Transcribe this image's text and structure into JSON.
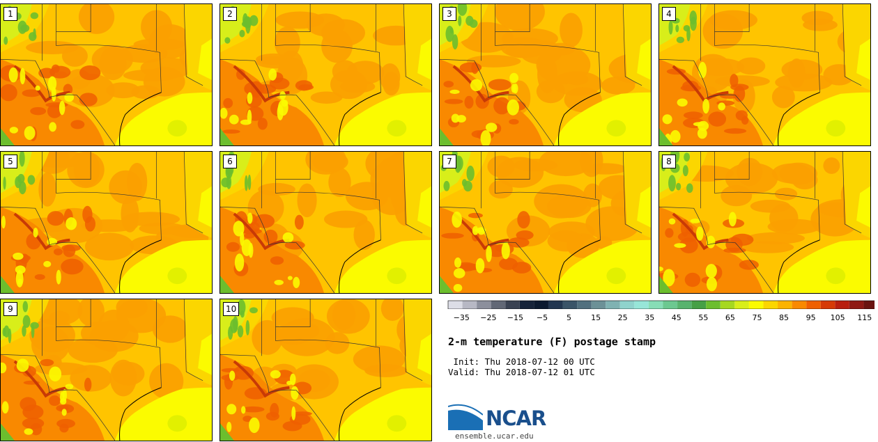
{
  "panels": [
    {
      "label": "1"
    },
    {
      "label": "2"
    },
    {
      "label": "3"
    },
    {
      "label": "4"
    },
    {
      "label": "5"
    },
    {
      "label": "6"
    },
    {
      "label": "7"
    },
    {
      "label": "8"
    },
    {
      "label": "9"
    },
    {
      "label": "10"
    }
  ],
  "colorbar": {
    "colors": [
      "#dcdde6",
      "#b7b8c4",
      "#8c8f9c",
      "#626876",
      "#3a4252",
      "#16233a",
      "#0c1a30",
      "#223650",
      "#3a5468",
      "#52707f",
      "#6c9197",
      "#7fb2b2",
      "#8fd3cc",
      "#97e6d8",
      "#87ddb6",
      "#6cc890",
      "#58b36e",
      "#46a046",
      "#6cbe2e",
      "#a6d820",
      "#d8ee1a",
      "#fbfb00",
      "#fbd600",
      "#fbb300",
      "#f98900",
      "#ef5f00",
      "#d63a06",
      "#b81e0e",
      "#8f1a14",
      "#6a1410"
    ],
    "ticks": [
      "−35",
      "−25",
      "−15",
      "−5",
      "5",
      "15",
      "25",
      "35",
      "45",
      "55",
      "65",
      "75",
      "85",
      "95",
      "105",
      "115"
    ],
    "min": -40,
    "max": 120
  },
  "title": "2-m temperature (F) postage stamp",
  "init": " Init: Thu 2018-07-12 00 UTC",
  "valid": "Valid: Thu 2018-07-12 01 UTC",
  "logo": {
    "name": "NCAR",
    "url": "ensemble.ucar.edu"
  }
}
